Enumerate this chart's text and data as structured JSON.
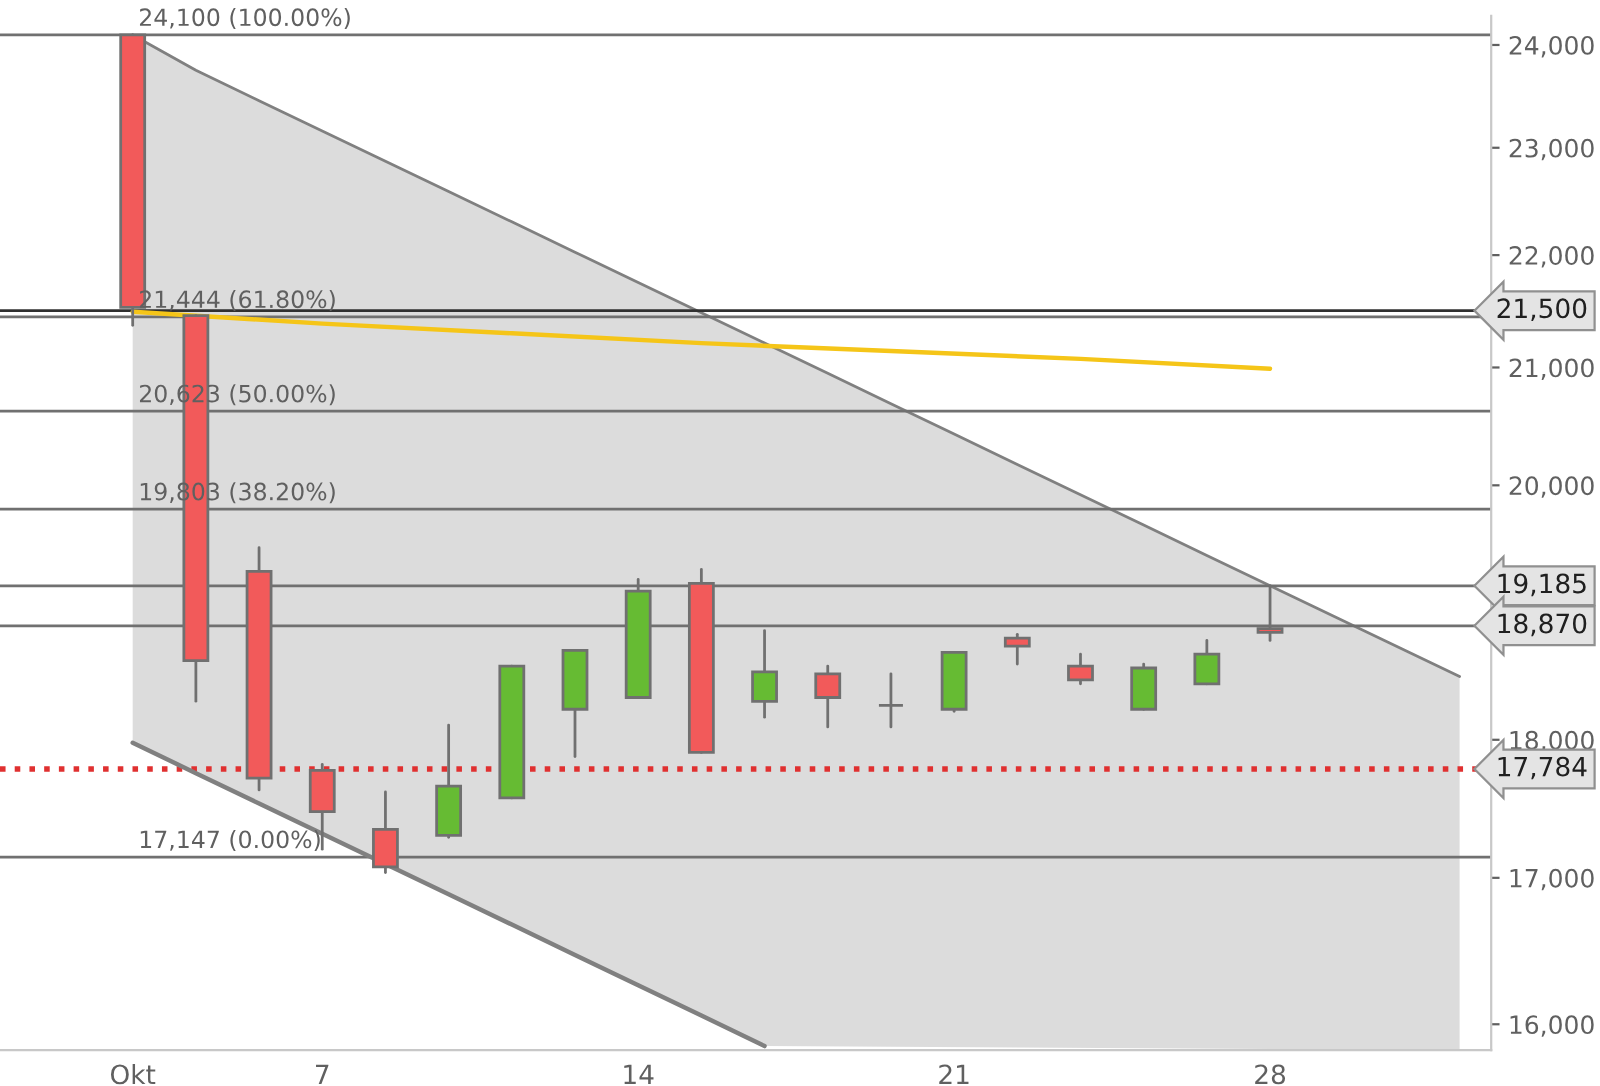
{
  "chart_data": {
    "type": "candlestick",
    "categories": [
      "Okt",
      null,
      null,
      "7",
      null,
      null,
      null,
      null,
      "14",
      null,
      null,
      null,
      null,
      "21",
      null,
      null,
      null,
      null,
      "28",
      null,
      null,
      null
    ],
    "ohlc": [
      [
        24100,
        24100,
        21370,
        21530
      ],
      [
        21455,
        21455,
        18290,
        18600
      ],
      [
        19300,
        19490,
        17630,
        17716
      ],
      [
        17774,
        17817,
        17203,
        17472
      ],
      [
        17344,
        17615,
        17037,
        17078
      ],
      [
        17302,
        18110,
        17288,
        17658
      ],
      [
        17572,
        18558,
        17572,
        18558
      ],
      [
        18229,
        18679,
        17875,
        18679
      ],
      [
        18318,
        19236,
        18318,
        19142
      ],
      [
        19205,
        19315,
        17906,
        17906
      ],
      [
        18289,
        18833,
        18169,
        18513
      ],
      [
        18498,
        18558,
        18096,
        18318
      ],
      [
        18258,
        18498,
        18096,
        18258
      ],
      [
        18229,
        18664,
        18214,
        18664
      ],
      [
        18773,
        18803,
        18573,
        18711
      ],
      [
        18558,
        18649,
        18422,
        18452
      ],
      [
        18229,
        18573,
        18229,
        18543
      ],
      [
        18422,
        18756,
        18422,
        18649
      ],
      [
        18848,
        19185,
        18756,
        18818
      ],
      null,
      null,
      null
    ],
    "colors": [
      "#f25a5a",
      "#f25a5a",
      "#f25a5a",
      "#f25a5a",
      "#f25a5a",
      "#66bb33",
      "#66bb33",
      "#66bb33",
      "#66bb33",
      "#f25a5a",
      "#66bb33",
      "#f25a5a",
      "#808080",
      "#66bb33",
      "#f25a5a",
      "#f25a5a",
      "#66bb33",
      "#66bb33",
      "#f25a5a",
      null,
      null,
      null
    ],
    "series": [
      {
        "type": "area",
        "color": "#dcdcdc",
        "values": [
          24100,
          23750,
          23453,
          23161,
          22872,
          22587,
          22305,
          22027,
          21752,
          21481,
          21213,
          20949,
          20687,
          20429,
          20174,
          19922,
          19674,
          19428,
          19186,
          18946,
          18710,
          18478
        ]
      },
      {
        "type": "line",
        "color": "#808080",
        "values": [
          17978,
          17753,
          17531,
          17313,
          17097,
          16884,
          16674,
          16466,
          16260,
          16058,
          15856,
          null,
          null,
          null,
          null,
          null,
          null,
          null,
          null,
          null,
          null,
          null
        ]
      },
      {
        "type": "line",
        "color": "#f5c518",
        "values": [
          21490,
          null,
          null,
          21385,
          null,
          null,
          21299,
          null,
          null,
          21213,
          null,
          null,
          21143,
          null,
          null,
          21075,
          null,
          null,
          20989,
          null,
          null,
          null
        ]
      }
    ],
    "log": true,
    "ylim": [
      15830,
      24290
    ],
    "yticks": [
      {
        "value": 16000,
        "label": "16,000"
      },
      {
        "value": 17000,
        "label": "17,000"
      },
      {
        "value": 18000,
        "label": "18,000"
      },
      {
        "value": 20000,
        "label": "20,000"
      },
      {
        "value": 21000,
        "label": "21,000"
      },
      {
        "value": 22000,
        "label": "22,000"
      },
      {
        "value": 23000,
        "label": "23,000"
      },
      {
        "value": 24000,
        "label": "24,000"
      }
    ],
    "ref_lines": [
      {
        "axis": "y",
        "value": 24100,
        "color": "#707070",
        "line_style": "solid"
      },
      {
        "axis": "y",
        "value": 21444,
        "color": "#707070",
        "line_style": "solid"
      },
      {
        "axis": "y",
        "value": 20623,
        "color": "#707070",
        "line_style": "solid"
      },
      {
        "axis": "y",
        "value": 19803,
        "color": "#707070",
        "line_style": "solid"
      },
      {
        "axis": "y",
        "value": 17147,
        "color": "#707070",
        "line_style": "solid"
      },
      {
        "axis": "y",
        "value": 21500,
        "label": "21,500",
        "color": "#303030",
        "line_style": "solid"
      },
      {
        "axis": "y",
        "value": 19185,
        "label": "19,185",
        "color": "#707070",
        "line_style": "solid"
      },
      {
        "axis": "y",
        "value": 18870,
        "label": "18,870",
        "color": "#707070",
        "line_style": "solid"
      },
      {
        "axis": "y",
        "value": 17784,
        "label": "17,784",
        "color": "#e03030",
        "line_style": "dotted"
      }
    ],
    "annotations": [
      {
        "text": "24,100 (100.00%)",
        "x": "Okt",
        "y": 24100
      },
      {
        "text": "21,444 (61.80%)",
        "x": "Okt",
        "y": 21444
      },
      {
        "text": "20,623 (50.00%)",
        "x": "Okt",
        "y": 20623
      },
      {
        "text": "19,803 (38.20%)",
        "x": "Okt",
        "y": 19803
      },
      {
        "text": "17,147 (0.00%)",
        "x": "Okt",
        "y": 17147
      }
    ]
  }
}
